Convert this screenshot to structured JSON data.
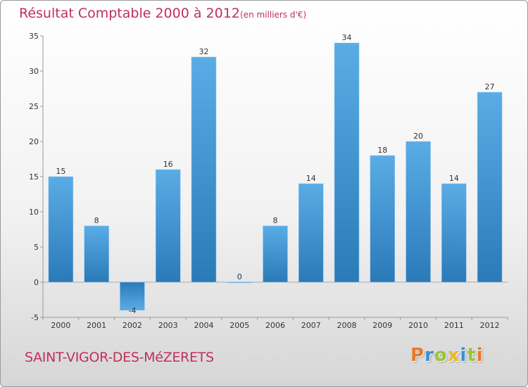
{
  "header": {
    "title": "Résultat Comptable 2000 à 2012",
    "subtitle": "(en milliers d'€)"
  },
  "footer": {
    "commune": "SAINT-VIGOR-DES-MéZERETS",
    "brand": "Proxiti"
  },
  "colors": {
    "title": "#c0305a",
    "bar_light": "#5aace6",
    "bar_dark": "#2a7ab8",
    "logo_p": "#e8792a",
    "logo_r": "#3b8fd0",
    "logo_o": "#9bc43a",
    "logo_x": "#e8b92a",
    "logo_i": "#3b8fd0",
    "logo_t": "#9bc43a",
    "logo_i2": "#e8792a"
  },
  "chart_data": {
    "type": "bar",
    "title": "Résultat Comptable 2000 à 2012",
    "unit": "en milliers d'€",
    "categories": [
      "2000",
      "2001",
      "2002",
      "2003",
      "2004",
      "2005",
      "2006",
      "2007",
      "2008",
      "2009",
      "2010",
      "2011",
      "2012"
    ],
    "values": [
      15,
      8,
      -4,
      16,
      32,
      0,
      8,
      14,
      34,
      18,
      20,
      14,
      27
    ],
    "labels": [
      "15",
      "8",
      "-4",
      "16",
      "32",
      "0",
      "8",
      "14",
      "34",
      "18",
      "20",
      "14",
      "27"
    ],
    "ylim": [
      -5,
      35
    ],
    "yticks": [
      -5,
      0,
      5,
      10,
      15,
      20,
      25,
      30,
      35
    ],
    "ytick_labels": [
      "-5",
      "0",
      "5",
      "10",
      "15",
      "20",
      "25",
      "30",
      "35"
    ],
    "xlabel": "",
    "ylabel": "",
    "grid": false
  }
}
